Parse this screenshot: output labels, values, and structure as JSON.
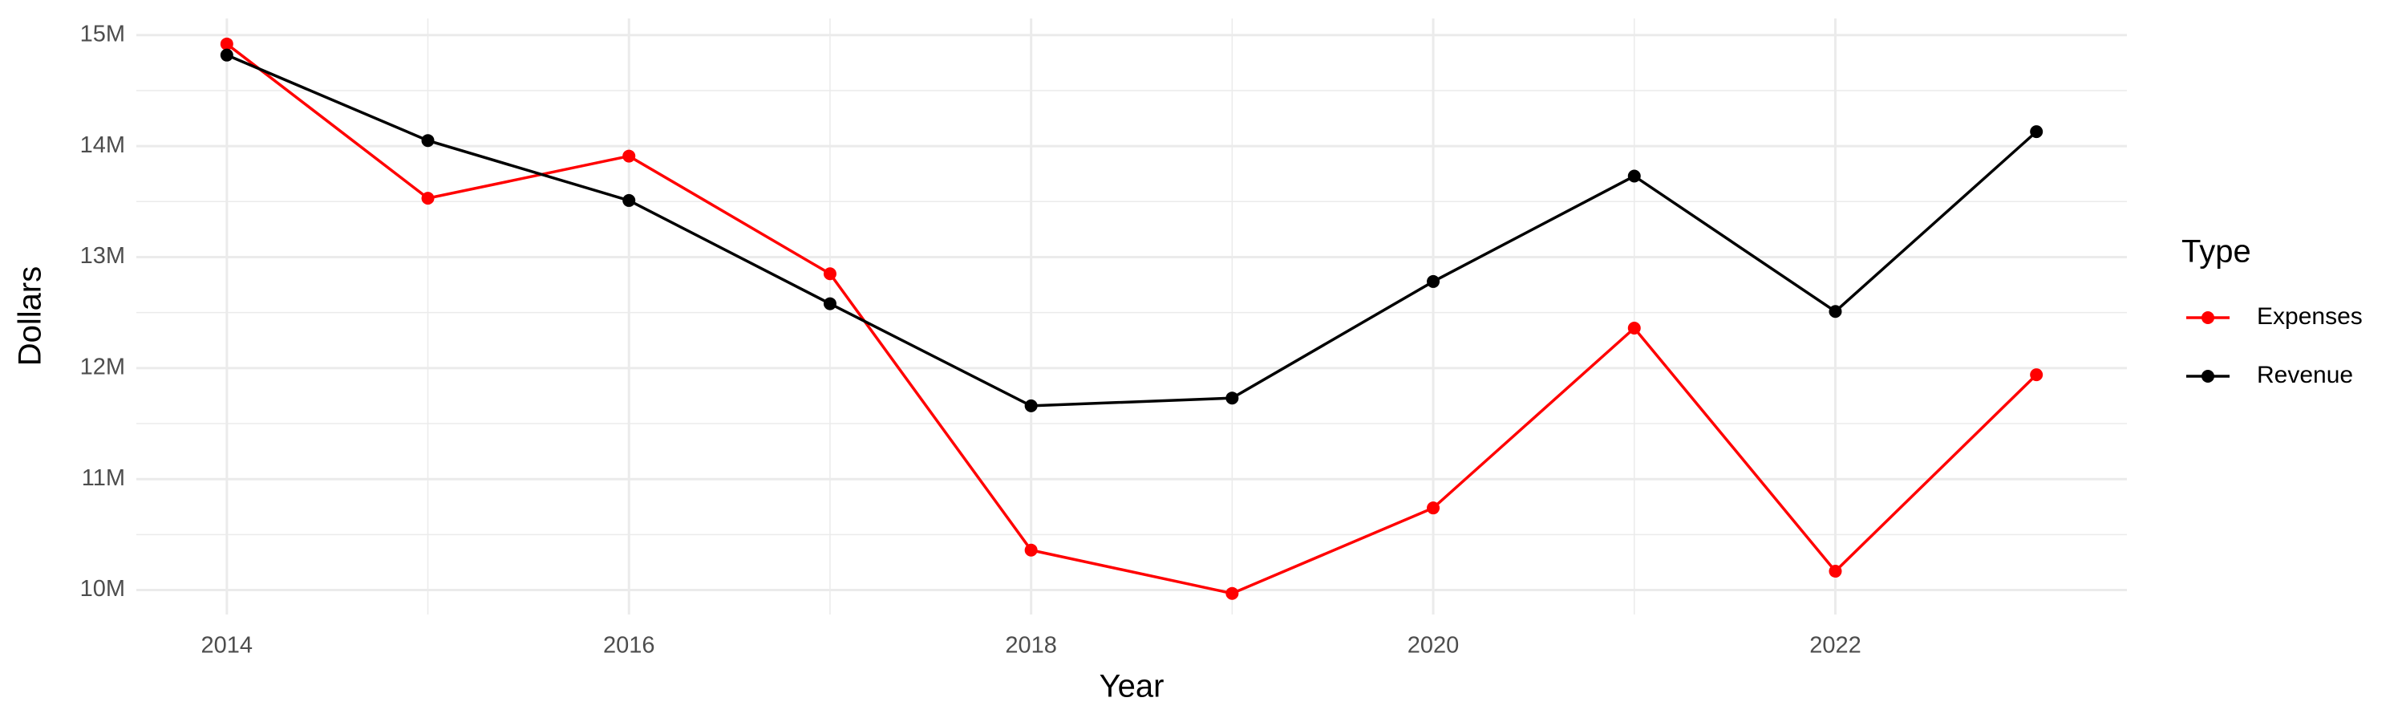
{
  "chart_data": {
    "type": "line",
    "x_label": "Year",
    "y_label": "Dollars",
    "legend_title": "Type",
    "legend": "right",
    "grid": true,
    "x": [
      2014,
      2015,
      2016,
      2017,
      2018,
      2019,
      2020,
      2021,
      2022,
      2023
    ],
    "series": [
      {
        "name": "Expenses",
        "color": "#ff0000",
        "values": [
          14920000,
          13530000,
          13910000,
          12850000,
          10360000,
          9970000,
          10740000,
          12360000,
          10170000,
          11940000
        ]
      },
      {
        "name": "Revenue",
        "color": "#000000",
        "values": [
          14820000,
          14050000,
          13510000,
          12580000,
          11660000,
          11730000,
          12780000,
          13730000,
          12510000,
          14130000
        ]
      }
    ],
    "xlim": [
      2013.55,
      2023.45
    ],
    "xticks": [
      2014,
      2016,
      2018,
      2020,
      2022
    ],
    "ylim": [
      9780000,
      15150000
    ],
    "yticks": [
      {
        "value": 10000000,
        "label": "10M"
      },
      {
        "value": 11000000,
        "label": "11M"
      },
      {
        "value": 12000000,
        "label": "12M"
      },
      {
        "value": 13000000,
        "label": "13M"
      },
      {
        "value": 14000000,
        "label": "14M"
      },
      {
        "value": 15000000,
        "label": "15M"
      }
    ]
  }
}
